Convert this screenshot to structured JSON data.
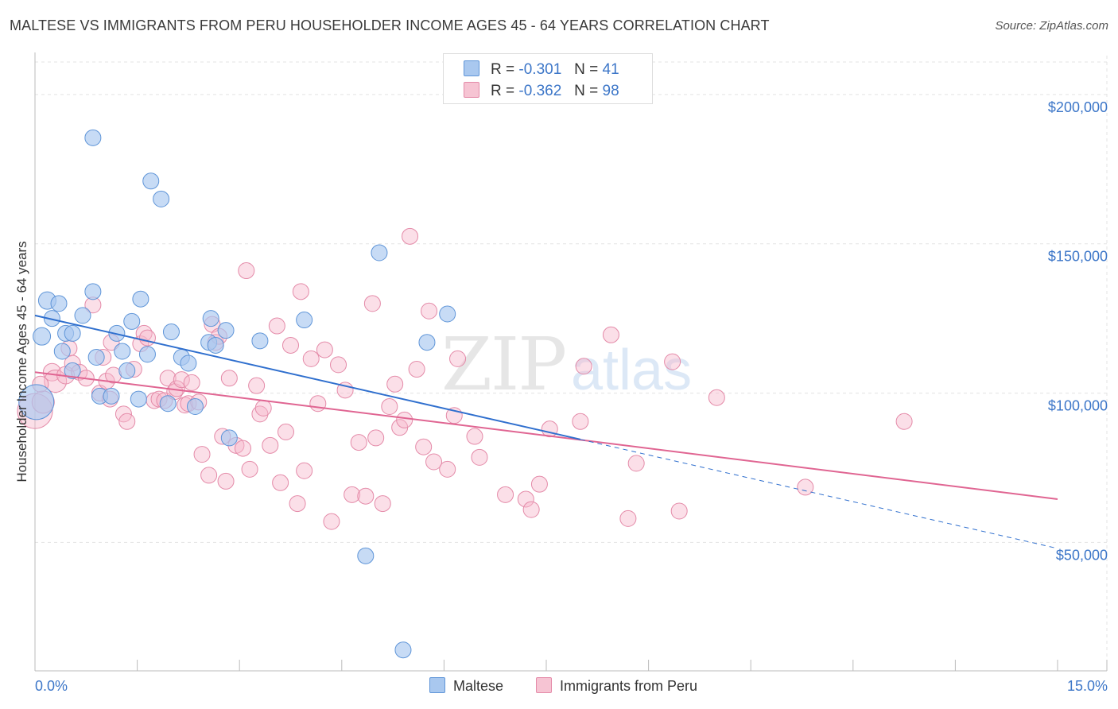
{
  "title": "MALTESE VS IMMIGRANTS FROM PERU HOUSEHOLDER INCOME AGES 45 - 64 YEARS CORRELATION CHART",
  "source": "Source: ZipAtlas.com",
  "watermark": {
    "zip": "ZIP",
    "atlas": "atlas"
  },
  "legend": {
    "rows": [
      {
        "r_label": "R =",
        "r_value": "-0.301",
        "n_label": "N =",
        "n_value": "41"
      },
      {
        "r_label": "R =",
        "r_value": "-0.362",
        "n_label": "N =",
        "n_value": "98"
      }
    ]
  },
  "bottom_legend": {
    "maltese": "Maltese",
    "peru": "Immigrants from Peru"
  },
  "colors": {
    "maltese_fill": "#a9c8ef",
    "maltese_stroke": "#5f95d8",
    "maltese_line": "#2f6fce",
    "peru_fill": "#f6b9cc",
    "peru_stroke": "#e48aa8",
    "peru_line": "#e06592",
    "axis_text": "#3c76c8",
    "grid": "#e3e3e3"
  },
  "chart_data": {
    "type": "scatter",
    "xlabel": "",
    "ylabel": "Householder Income Ages 45 - 64 years",
    "xlim": [
      0,
      15
    ],
    "ylim": [
      7000,
      213000
    ],
    "x_tick_labels": [
      {
        "x": 0,
        "label": "0.0%"
      },
      {
        "x": 15,
        "label": "15.0%"
      }
    ],
    "y_ticks": [
      {
        "y": 50000,
        "label": "$50,000"
      },
      {
        "y": 100000,
        "label": "$100,000"
      },
      {
        "y": 150000,
        "label": "$150,000"
      },
      {
        "y": 200000,
        "label": "$200,000"
      }
    ],
    "series": [
      {
        "name": "Maltese",
        "r": -0.301,
        "n": 41,
        "trend": {
          "x0": 0.0,
          "y0": 126000,
          "x1": 8.0,
          "y1": 84500,
          "dash_x1": 15.0,
          "dash_y1": 48000
        },
        "points": [
          [
            0.02,
            97000,
            22
          ],
          [
            0.1,
            119000,
            11
          ],
          [
            0.18,
            131000,
            11
          ],
          [
            0.25,
            125000,
            10
          ],
          [
            0.35,
            130000,
            10
          ],
          [
            0.4,
            114000,
            10
          ],
          [
            0.45,
            120000,
            10
          ],
          [
            0.55,
            120000,
            10
          ],
          [
            0.55,
            107500,
            10
          ],
          [
            0.7,
            126000,
            10
          ],
          [
            0.85,
            185500,
            10
          ],
          [
            0.85,
            134000,
            10
          ],
          [
            0.9,
            112000,
            10
          ],
          [
            0.95,
            99000,
            10
          ],
          [
            1.12,
            99000,
            10
          ],
          [
            1.2,
            120000,
            10
          ],
          [
            1.28,
            114000,
            10
          ],
          [
            1.35,
            107500,
            10
          ],
          [
            1.42,
            124000,
            10
          ],
          [
            1.52,
            98000,
            10
          ],
          [
            1.55,
            131500,
            10
          ],
          [
            1.65,
            113000,
            10
          ],
          [
            1.7,
            171000,
            10
          ],
          [
            1.85,
            165000,
            10
          ],
          [
            1.95,
            96500,
            10
          ],
          [
            2.0,
            120500,
            10
          ],
          [
            2.15,
            112000,
            10
          ],
          [
            2.25,
            110000,
            10
          ],
          [
            2.35,
            95500,
            10
          ],
          [
            2.55,
            117000,
            10
          ],
          [
            2.65,
            116000,
            10
          ],
          [
            2.58,
            125000,
            10
          ],
          [
            2.8,
            121000,
            10
          ],
          [
            2.85,
            85000,
            10
          ],
          [
            3.3,
            117500,
            10
          ],
          [
            3.95,
            124500,
            10
          ],
          [
            4.85,
            45500,
            10
          ],
          [
            5.05,
            147000,
            10
          ],
          [
            5.4,
            14000,
            10
          ],
          [
            5.75,
            117000,
            10
          ],
          [
            6.05,
            126500,
            10
          ]
        ]
      },
      {
        "name": "Immigrants from Peru",
        "r": -0.362,
        "n": 98,
        "trend": {
          "x0": 0.0,
          "y0": 107000,
          "x1": 15.0,
          "y1": 64500
        },
        "points": [
          [
            0.0,
            94000,
            22
          ],
          [
            0.12,
            97000,
            14
          ],
          [
            0.25,
            107000,
            11
          ],
          [
            0.3,
            104000,
            14
          ],
          [
            0.45,
            106000,
            11
          ],
          [
            0.5,
            115000,
            10
          ],
          [
            0.55,
            110000,
            10
          ],
          [
            0.65,
            107000,
            10
          ],
          [
            0.75,
            105000,
            10
          ],
          [
            0.85,
            129500,
            10
          ],
          [
            0.95,
            100000,
            10
          ],
          [
            1.05,
            104000,
            10
          ],
          [
            1.1,
            98000,
            10
          ],
          [
            1.12,
            117000,
            10
          ],
          [
            1.15,
            106000,
            10
          ],
          [
            1.3,
            93000,
            10
          ],
          [
            1.35,
            90500,
            10
          ],
          [
            1.45,
            108000,
            10
          ],
          [
            1.55,
            116500,
            10
          ],
          [
            1.6,
            120000,
            10
          ],
          [
            1.65,
            118500,
            10
          ],
          [
            1.75,
            97500,
            10
          ],
          [
            1.82,
            98000,
            10
          ],
          [
            1.9,
            97500,
            10
          ],
          [
            1.95,
            105000,
            10
          ],
          [
            2.05,
            100500,
            10
          ],
          [
            2.08,
            101500,
            10
          ],
          [
            2.15,
            104500,
            10
          ],
          [
            2.2,
            96000,
            10
          ],
          [
            2.25,
            96500,
            10
          ],
          [
            2.3,
            103500,
            10
          ],
          [
            2.4,
            97000,
            10
          ],
          [
            2.45,
            79500,
            10
          ],
          [
            2.55,
            72500,
            10
          ],
          [
            2.6,
            123000,
            10
          ],
          [
            2.65,
            117000,
            10
          ],
          [
            2.7,
            119000,
            10
          ],
          [
            2.75,
            85500,
            10
          ],
          [
            2.8,
            70500,
            10
          ],
          [
            2.85,
            105000,
            10
          ],
          [
            2.95,
            82500,
            10
          ],
          [
            3.05,
            81500,
            10
          ],
          [
            3.1,
            141000,
            10
          ],
          [
            3.15,
            74500,
            10
          ],
          [
            3.25,
            102500,
            10
          ],
          [
            3.3,
            93000,
            10
          ],
          [
            3.35,
            95000,
            10
          ],
          [
            3.45,
            82500,
            10
          ],
          [
            3.55,
            122500,
            10
          ],
          [
            3.6,
            70000,
            10
          ],
          [
            3.68,
            87000,
            10
          ],
          [
            3.75,
            116000,
            10
          ],
          [
            3.85,
            63000,
            10
          ],
          [
            3.9,
            134000,
            10
          ],
          [
            3.95,
            74000,
            10
          ],
          [
            4.05,
            111500,
            10
          ],
          [
            4.15,
            96500,
            10
          ],
          [
            4.25,
            114500,
            10
          ],
          [
            4.35,
            57000,
            10
          ],
          [
            4.45,
            109500,
            10
          ],
          [
            4.55,
            101000,
            10
          ],
          [
            4.65,
            66000,
            10
          ],
          [
            4.75,
            83500,
            10
          ],
          [
            4.85,
            65500,
            10
          ],
          [
            4.95,
            130000,
            10
          ],
          [
            5.0,
            85000,
            10
          ],
          [
            5.1,
            63000,
            10
          ],
          [
            5.2,
            95500,
            10
          ],
          [
            5.28,
            103000,
            10
          ],
          [
            5.35,
            88500,
            10
          ],
          [
            5.42,
            91000,
            10
          ],
          [
            5.5,
            152500,
            10
          ],
          [
            5.6,
            108000,
            10
          ],
          [
            5.7,
            82000,
            10
          ],
          [
            5.78,
            127500,
            10
          ],
          [
            5.85,
            77000,
            10
          ],
          [
            6.05,
            74500,
            10
          ],
          [
            6.15,
            92500,
            10
          ],
          [
            6.2,
            111500,
            10
          ],
          [
            6.45,
            85500,
            10
          ],
          [
            6.52,
            78500,
            10
          ],
          [
            6.9,
            66000,
            10
          ],
          [
            7.2,
            64500,
            10
          ],
          [
            7.28,
            61000,
            10
          ],
          [
            7.4,
            69500,
            10
          ],
          [
            7.55,
            88000,
            10
          ],
          [
            8.0,
            90500,
            10
          ],
          [
            8.05,
            109000,
            10
          ],
          [
            8.45,
            119500,
            10
          ],
          [
            8.7,
            58000,
            10
          ],
          [
            8.82,
            76500,
            10
          ],
          [
            9.35,
            110500,
            10
          ],
          [
            9.45,
            60500,
            10
          ],
          [
            10.0,
            98500,
            10
          ],
          [
            11.3,
            68500,
            10
          ],
          [
            12.75,
            90500,
            10
          ],
          [
            0.08,
            103000,
            10
          ],
          [
            1.0,
            112000,
            10
          ]
        ]
      }
    ]
  }
}
